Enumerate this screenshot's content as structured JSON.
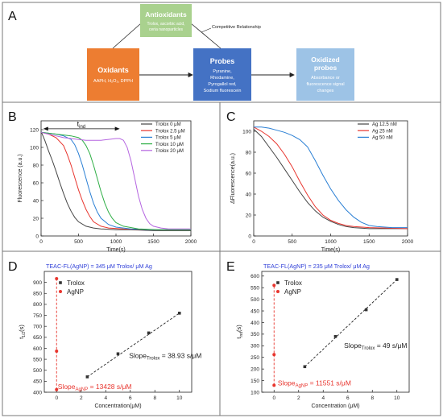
{
  "figure": {
    "panel_letters": [
      "A",
      "B",
      "C",
      "D",
      "E"
    ]
  },
  "diagram": {
    "antioxidants": {
      "title": "Antioxidants",
      "lines": [
        "Trolox, ascorbic acid,",
        "ceria nanoparticles"
      ]
    },
    "oxidants": {
      "title": "Oxidants",
      "lines": [
        "AAPH, H₂O₂, DPPH"
      ]
    },
    "probes": {
      "title": "Probes",
      "lines": [
        "Pyranine,",
        "Rhodamine,",
        "Pyrogallol red,",
        "Sodium fluorescein"
      ]
    },
    "oxidized": {
      "title_lines": [
        "Oxidized",
        "probes"
      ],
      "lines": [
        "Absorbance or",
        "fluorescence signal",
        "changes"
      ]
    },
    "relation_label": "Competitive Relationship",
    "colors": {
      "antioxidants": "#a9d18e",
      "oxidants": "#ed7d31",
      "probes": "#4472c4",
      "oxidized": "#9dc3e6"
    }
  },
  "chart_data": [
    {
      "panel": "B",
      "type": "line",
      "xlabel": "Time(s)",
      "ylabel": "Fluorescence (a.u.)",
      "xlim": [
        0,
        2000
      ],
      "ylim": [
        0,
        130
      ],
      "xticks": [
        0,
        500,
        1000,
        1500,
        2000
      ],
      "yticks": [
        0,
        20,
        40,
        60,
        80,
        100,
        120
      ],
      "legend_position": "top-right",
      "annotation": {
        "text": "t",
        "subscript": "ind"
      },
      "series": [
        {
          "name": "Trolox 0 μM",
          "color": "#444444",
          "x": [
            0,
            50,
            100,
            150,
            200,
            250,
            300,
            350,
            400,
            450,
            500,
            600,
            700,
            800,
            1000,
            1200,
            1500,
            2000
          ],
          "y": [
            118,
            108,
            96,
            85,
            73,
            60,
            48,
            37,
            28,
            21,
            16,
            11,
            9,
            8,
            7,
            7,
            6,
            6
          ]
        },
        {
          "name": "Trolox 2.5 μM",
          "color": "#e8352e",
          "x": [
            0,
            100,
            200,
            300,
            350,
            400,
            450,
            500,
            550,
            600,
            650,
            700,
            800,
            900,
            1100,
            1500,
            2000
          ],
          "y": [
            117,
            115,
            111,
            102,
            92,
            80,
            66,
            52,
            40,
            30,
            22,
            16,
            11,
            9,
            8,
            7,
            7
          ]
        },
        {
          "name": "Trolox 5 μM",
          "color": "#2a7fd4",
          "x": [
            0,
            100,
            200,
            300,
            400,
            450,
            500,
            550,
            600,
            650,
            700,
            750,
            800,
            900,
            1000,
            1200,
            1500,
            2000
          ],
          "y": [
            117,
            116,
            115,
            113,
            109,
            103,
            93,
            80,
            65,
            50,
            37,
            27,
            20,
            13,
            10,
            8,
            7,
            7
          ]
        },
        {
          "name": "Trolox 10 μM",
          "color": "#2eae45",
          "x": [
            0,
            100,
            200,
            300,
            400,
            500,
            550,
            600,
            650,
            700,
            750,
            800,
            850,
            900,
            950,
            1000,
            1100,
            1300,
            1600,
            2000
          ],
          "y": [
            117,
            116,
            115,
            114,
            113,
            111,
            108,
            102,
            93,
            80,
            65,
            50,
            37,
            27,
            20,
            15,
            11,
            8,
            7,
            7
          ]
        },
        {
          "name": "Trolox 20 μM",
          "color": "#b565e0",
          "x": [
            0,
            100,
            200,
            300,
            400,
            500,
            600,
            700,
            800,
            900,
            1000,
            1050,
            1100,
            1150,
            1200,
            1250,
            1300,
            1350,
            1400,
            1450,
            1500,
            1600,
            1700,
            2000
          ],
          "y": [
            117,
            115,
            113,
            111,
            110,
            109,
            108,
            108,
            108,
            109,
            110,
            110,
            108,
            100,
            85,
            65,
            45,
            30,
            20,
            14,
            11,
            9,
            8,
            8
          ]
        }
      ]
    },
    {
      "panel": "C",
      "type": "line",
      "xlabel": "Time(s)",
      "ylabel": "ΔFluorescence(a.u.)",
      "xlim": [
        0,
        2000
      ],
      "ylim": [
        0,
        110
      ],
      "xticks": [
        0,
        500,
        1000,
        1500,
        2000
      ],
      "yticks": [
        0,
        20,
        40,
        60,
        80,
        100
      ],
      "legend_position": "top-right",
      "series": [
        {
          "name": "Ag 12.5 nM",
          "color": "#444444",
          "x": [
            0,
            100,
            200,
            300,
            400,
            500,
            600,
            700,
            800,
            900,
            1000,
            1100,
            1200,
            1300,
            1500,
            2000
          ],
          "y": [
            102,
            95,
            85,
            75,
            64,
            53,
            42,
            32,
            24,
            18,
            14,
            11,
            9,
            8,
            7,
            7
          ]
        },
        {
          "name": "Ag 25 nM",
          "color": "#e8352e",
          "x": [
            0,
            100,
            200,
            300,
            400,
            500,
            600,
            700,
            800,
            900,
            1000,
            1100,
            1200,
            1300,
            1500,
            2000
          ],
          "y": [
            104,
            100,
            95,
            88,
            78,
            66,
            52,
            39,
            28,
            20,
            15,
            12,
            10,
            9,
            8,
            7
          ]
        },
        {
          "name": "Ag 50 nM",
          "color": "#2a7fd4",
          "x": [
            0,
            100,
            200,
            300,
            400,
            500,
            600,
            700,
            800,
            900,
            1000,
            1100,
            1200,
            1300,
            1400,
            1500,
            1600,
            1800,
            2000
          ],
          "y": [
            104,
            104,
            103,
            101,
            99,
            96,
            92,
            85,
            72,
            58,
            45,
            34,
            25,
            18,
            13,
            10,
            9,
            8,
            8
          ]
        }
      ]
    },
    {
      "panel": "D",
      "type": "scatter",
      "xlabel": "Concentration(μM)",
      "ylabel": "t",
      "ylabel_subscript": "1/2",
      "ylabel_unit": "(s)",
      "xlim": [
        -1,
        11
      ],
      "ylim": [
        400,
        950
      ],
      "xticks": [
        0,
        2,
        4,
        6,
        8,
        10
      ],
      "yticks": [
        400,
        450,
        500,
        550,
        600,
        650,
        700,
        750,
        800,
        850,
        900
      ],
      "header": "TEAC-FL(AgNP) = 345 μM Trolox/ μM Ag",
      "legend_position": "top-left",
      "series": [
        {
          "name": "Trolox",
          "color": "#333333",
          "x": [
            2.5,
            5,
            7.5,
            10
          ],
          "y": [
            470,
            575,
            670,
            760
          ],
          "fit": {
            "from": 2.5,
            "to": 10,
            "y0": 470,
            "y1": 760
          }
        },
        {
          "name": "AgNP",
          "color": "#e8352e",
          "x": [
            0,
            0,
            0
          ],
          "y": [
            412,
            587,
            917
          ]
        }
      ],
      "slope_trolox": {
        "text": "Slope",
        "sub": "Trolox",
        "value": " = 38.93 s/μM"
      },
      "slope_agnp": {
        "text": "Slope",
        "sub": "AgNP",
        "value": " = 13428 s/μM"
      }
    },
    {
      "panel": "E",
      "type": "scatter",
      "xlabel": "Concentration (μM)",
      "ylabel": "t",
      "ylabel_subscript": "ind",
      "ylabel_unit": "(s)",
      "xlim": [
        -1,
        11
      ],
      "ylim": [
        100,
        620
      ],
      "xticks": [
        0,
        2,
        4,
        6,
        8,
        10
      ],
      "yticks": [
        100,
        150,
        200,
        250,
        300,
        350,
        400,
        450,
        500,
        550,
        600
      ],
      "header": "TEAC-FL(AgNP) = 235 μM Trolox/ μM Ag",
      "legend_position": "top-left",
      "series": [
        {
          "name": "Trolox",
          "color": "#333333",
          "x": [
            2.5,
            5,
            7.5,
            10
          ],
          "y": [
            210,
            340,
            455,
            585
          ],
          "fit": {
            "from": 2.5,
            "to": 10,
            "y0": 210,
            "y1": 585
          }
        },
        {
          "name": "AgNP",
          "color": "#e8352e",
          "x": [
            0,
            0,
            0
          ],
          "y": [
            130,
            262,
            560
          ]
        }
      ],
      "slope_trolox": {
        "text": "Slope",
        "sub": "Trolox",
        "value": " = 49 s/μM"
      },
      "slope_agnp": {
        "text": "Slope",
        "sub": "AgNP",
        "value": " = 11551 s/μM"
      }
    }
  ]
}
